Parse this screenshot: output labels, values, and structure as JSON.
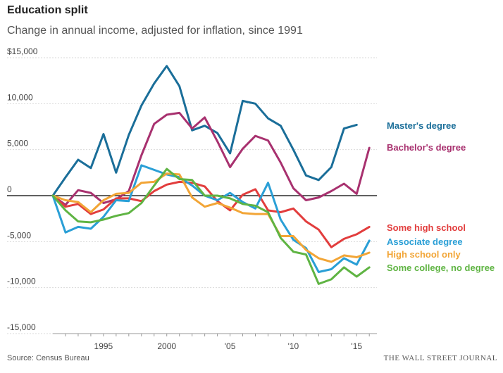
{
  "header": {
    "title": "Education split",
    "subtitle": "Change in annual income, adjusted for inflation, since 1991"
  },
  "footer": {
    "source": "Source: Census Bureau",
    "brand": "THE WALL STREET JOURNAL"
  },
  "chart_data": {
    "type": "line",
    "title": "Education split",
    "subtitle": "Change in annual income, adjusted for inflation, since 1991",
    "xlabel": "",
    "ylabel": "",
    "xlim": [
      1991,
      2016
    ],
    "ylim": [
      -15000,
      15000
    ],
    "grid": true,
    "legend": "right, inline labels at line ends",
    "y_ticks": [
      {
        "value": 15000,
        "label": "$15,000"
      },
      {
        "value": 10000,
        "label": "10,000"
      },
      {
        "value": 5000,
        "label": "5,000"
      },
      {
        "value": 0,
        "label": "0"
      },
      {
        "value": -5000,
        "label": "-5,000"
      },
      {
        "value": -10000,
        "label": "-10,000"
      },
      {
        "value": -15000,
        "label": "-15,000"
      }
    ],
    "x_ticks": [
      {
        "value": 1995,
        "label": "1995"
      },
      {
        "value": 2000,
        "label": "2000"
      },
      {
        "value": 2005,
        "label": "'05"
      },
      {
        "value": 2010,
        "label": "'10"
      },
      {
        "value": 2015,
        "label": "'15"
      }
    ],
    "x": [
      1991,
      1992,
      1993,
      1994,
      1995,
      1996,
      1997,
      1998,
      1999,
      2000,
      2001,
      2002,
      2003,
      2004,
      2005,
      2006,
      2007,
      2008,
      2009,
      2010,
      2011,
      2012,
      2013,
      2014,
      2015,
      2016
    ],
    "series": [
      {
        "name": "Master's degree",
        "color": "#1a6e99",
        "values": [
          0,
          2000,
          3900,
          3000,
          6700,
          2500,
          6600,
          9800,
          12200,
          14100,
          11900,
          7100,
          7600,
          6800,
          4600,
          10300,
          10000,
          8400,
          7600,
          5000,
          2200,
          1700,
          3100,
          7300,
          7700,
          null
        ]
      },
      {
        "name": "Bachelor's degree",
        "color": "#a8316f",
        "values": [
          0,
          -1000,
          600,
          300,
          -800,
          -400,
          500,
          4400,
          7800,
          8800,
          9000,
          7300,
          8500,
          5900,
          3100,
          5100,
          6500,
          6000,
          3600,
          800,
          -500,
          -200,
          500,
          1300,
          200,
          5200
        ]
      },
      {
        "name": "Some high school",
        "color": "#e23d3d",
        "values": [
          0,
          -1200,
          -900,
          -2000,
          -1500,
          -300,
          -300,
          -600,
          500,
          1200,
          1500,
          1400,
          1000,
          -600,
          -1600,
          100,
          700,
          -1600,
          -1800,
          -1400,
          -2800,
          -3700,
          -5600,
          -4700,
          -4200,
          -3400
        ]
      },
      {
        "name": "Associate degree",
        "color": "#2a9fd6",
        "values": [
          0,
          -4000,
          -3400,
          -3600,
          -2300,
          -500,
          -600,
          3300,
          2800,
          2300,
          2000,
          1100,
          0,
          -500,
          300,
          -700,
          -1400,
          1400,
          -2600,
          -4800,
          -5700,
          -8300,
          -8000,
          -6800,
          -7500,
          -4900
        ]
      },
      {
        "name": "High school only",
        "color": "#f2a536",
        "values": [
          0,
          -500,
          -700,
          -1800,
          -500,
          200,
          300,
          1400,
          1500,
          2400,
          2300,
          -200,
          -1200,
          -800,
          -1300,
          -1900,
          -2000,
          -2000,
          -4400,
          -4400,
          -5900,
          -6800,
          -7200,
          -6500,
          -6700,
          -6200
        ]
      },
      {
        "name": "Some college, no degree",
        "color": "#5fb443",
        "values": [
          0,
          -1600,
          -2800,
          -2900,
          -2600,
          -2200,
          -1900,
          -800,
          1100,
          2900,
          1800,
          1700,
          0,
          0,
          -300,
          -900,
          -1100,
          -1800,
          -4600,
          -6100,
          -6400,
          -9600,
          -9100,
          -7800,
          -8800,
          -7800
        ]
      }
    ]
  }
}
